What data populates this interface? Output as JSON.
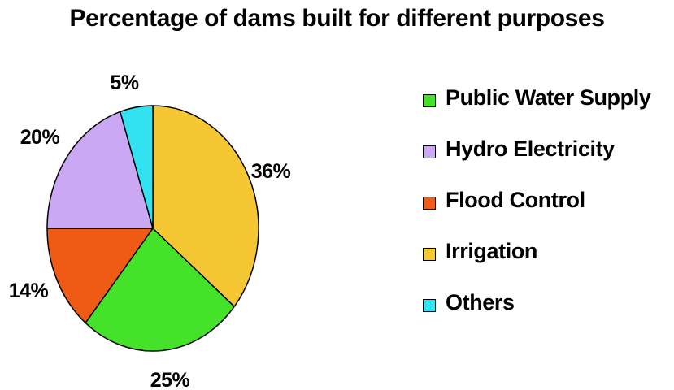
{
  "chart_data": {
    "type": "pie",
    "title": "Percentage of dams built for different purposes",
    "slices": [
      {
        "label": "Irrigation",
        "value": 36,
        "display": "36%",
        "color": "#f5c833"
      },
      {
        "label": "Public Water Supply",
        "value": 25,
        "display": "25%",
        "color": "#45e22a"
      },
      {
        "label": "Flood Control",
        "value": 14,
        "display": "14%",
        "color": "#ef5a14"
      },
      {
        "label": "Hydro Electricity",
        "value": 20,
        "display": "20%",
        "color": "#cba8f3"
      },
      {
        "label": "Others",
        "value": 5,
        "display": "5%",
        "color": "#33e2f0"
      }
    ],
    "legend": {
      "placement": "right",
      "items": [
        {
          "label": "Public Water Supply",
          "color": "#45e22a"
        },
        {
          "label": "Hydro Electricity",
          "color": "#cba8f3"
        },
        {
          "label": "Flood Control",
          "color": "#ef5a14"
        },
        {
          "label": "Irrigation",
          "color": "#f5c833"
        },
        {
          "label": "Others",
          "color": "#33e2f0"
        }
      ]
    }
  }
}
